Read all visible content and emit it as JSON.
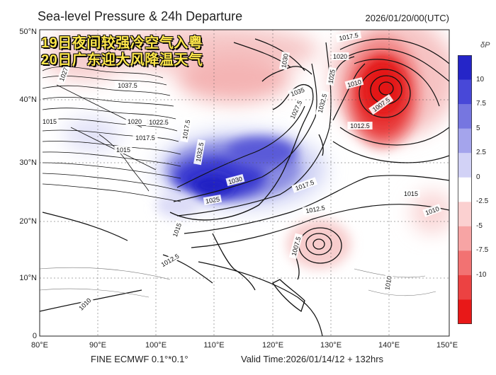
{
  "header": {
    "title": "Sea-level Pressure & 24h Departure",
    "datetime": "2026/01/20/00(UTC)"
  },
  "overlay": {
    "line1": "19日夜间较强冷空气入粤",
    "line2": "20日广东迎大风降温天气"
  },
  "axes": {
    "lat_labels": [
      "50°N",
      "40°N",
      "30°N",
      "20°N",
      "10°N",
      "0"
    ],
    "lon_labels": [
      "80°E",
      "90°E",
      "100°E",
      "110°E",
      "120°E",
      "130°E",
      "140°E",
      "150°E"
    ]
  },
  "footer": {
    "model": "FINE ECMWF 0.1°*0.1°",
    "valid": "Valid Time:2026/01/14/12 + 132hrs"
  },
  "colorbar": {
    "title": "δP",
    "ticks": [
      "10",
      "7.5",
      "5",
      "2.5",
      "0",
      "-2.5",
      "-5",
      "-7.5",
      "-10"
    ],
    "colors": [
      "#2525c8",
      "#4848d8",
      "#7676e0",
      "#a4a4ec",
      "#d2d2f6",
      "#ffffff",
      "#fbd0d0",
      "#f7a4a4",
      "#f27272",
      "#ec4242",
      "#e81818"
    ]
  },
  "contour_labels": [
    "1017.5",
    "1020",
    "1010",
    "1007.5",
    "1012.5",
    "1025",
    "1030",
    "1035",
    "1037.5",
    "1027.5",
    "1032.5",
    "1022.5",
    "1015",
    "1017.5",
    "1030",
    "1032.5",
    "1025",
    "1017.5",
    "1015",
    "1012.5",
    "1010",
    "1007.5",
    "1010",
    "1012.5",
    "1010",
    "1020",
    "1015",
    "1027",
    "1022.5",
    "1017.5",
    "1015"
  ]
}
